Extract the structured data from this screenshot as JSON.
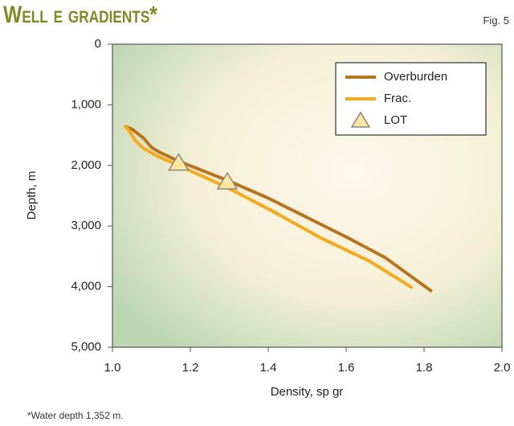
{
  "chart_data": {
    "type": "line",
    "title": "Well e gradients*",
    "figure_label": "Fig. 5",
    "x_label": "Density, sp gr",
    "y_label": "Depth, m",
    "footnote": "*Water depth 1,352 m.",
    "xlim": [
      1.0,
      2.0
    ],
    "ylim": [
      0,
      5000
    ],
    "y_inverted": true,
    "xticks": [
      {
        "value": 1,
        "label": "1.0"
      },
      1.2,
      1.4,
      1.6,
      1.8,
      {
        "value": 2,
        "label": "2.0"
      }
    ],
    "yticks": [
      0,
      {
        "value": 1000,
        "label": "1,000"
      },
      {
        "value": 2000,
        "label": "2,000"
      },
      {
        "value": 3000,
        "label": "3,000"
      },
      {
        "value": 4000,
        "label": "4,000"
      },
      {
        "value": 5000,
        "label": "5,000"
      }
    ],
    "legend": "top-right",
    "series": [
      {
        "name": "Overburden",
        "type": "line",
        "color": "#b8741a",
        "x": [
          1.03,
          1.05,
          1.08,
          1.1,
          1.12,
          1.17,
          1.3,
          1.4,
          1.5,
          1.6,
          1.7,
          1.76,
          1.82
        ],
        "values": [
          1352,
          1400,
          1550,
          1700,
          1780,
          1930,
          2260,
          2540,
          2860,
          3180,
          3520,
          3800,
          4080
        ]
      },
      {
        "name": "Frac.",
        "type": "line",
        "color": "#f7a81b",
        "x": [
          1.03,
          1.04,
          1.06,
          1.08,
          1.12,
          1.17,
          1.29,
          1.41,
          1.53,
          1.66,
          1.77
        ],
        "values": [
          1352,
          1400,
          1600,
          1720,
          1860,
          2000,
          2350,
          2750,
          3180,
          3580,
          4020
        ]
      },
      {
        "name": "LOT",
        "type": "scatter",
        "color": "#f8e6a2",
        "x": [
          1.17,
          1.295
        ],
        "values": [
          1960,
          2270
        ]
      }
    ]
  }
}
